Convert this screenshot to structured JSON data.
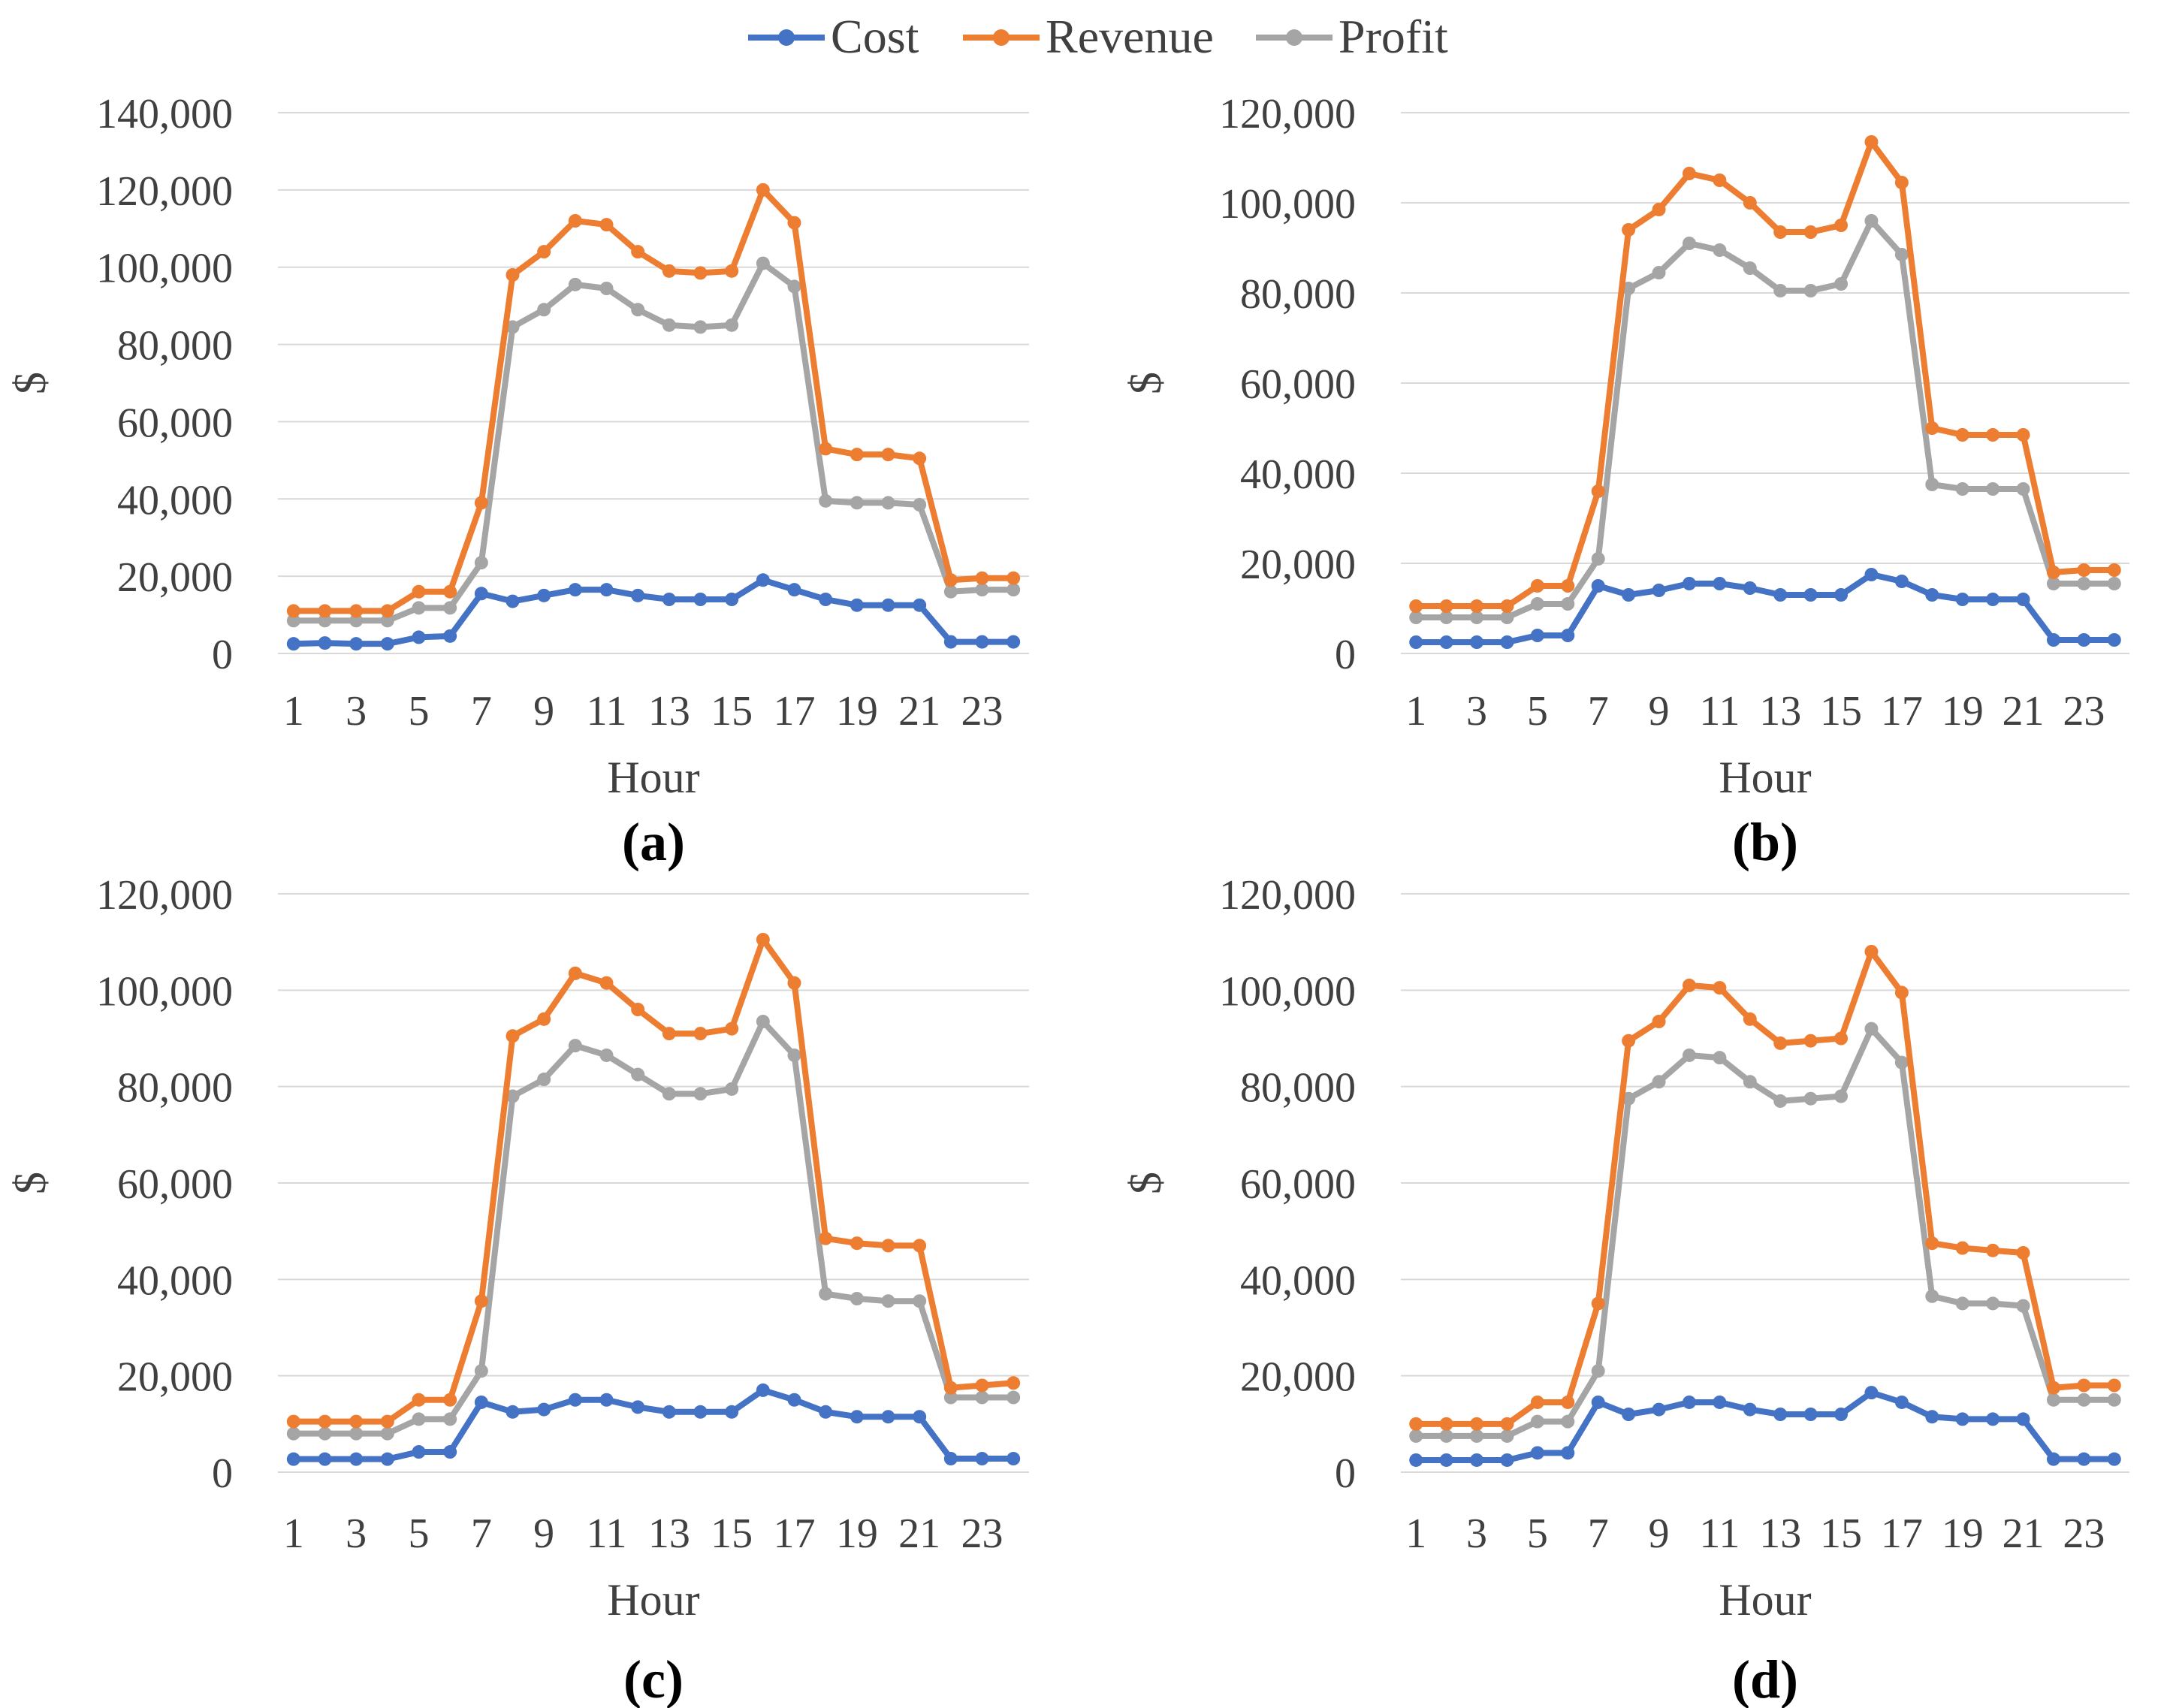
{
  "colors": {
    "cost": "#4472c4",
    "revenue": "#ed7d31",
    "profit": "#a5a5a5"
  },
  "legend": [
    {
      "name": "Cost",
      "color": "#4472c4"
    },
    {
      "name": "Revenue",
      "color": "#ed7d31"
    },
    {
      "name": "Profit",
      "color": "#a5a5a5"
    }
  ],
  "chart_data": [
    {
      "type": "line",
      "panel_label": "(a)",
      "xlabel": "Hour",
      "ylabel": "$",
      "x": [
        1,
        2,
        3,
        4,
        5,
        6,
        7,
        8,
        9,
        10,
        11,
        12,
        13,
        14,
        15,
        16,
        17,
        18,
        19,
        20,
        21,
        22,
        23,
        24
      ],
      "x_tick_labels": [
        "1",
        "3",
        "5",
        "7",
        "9",
        "11",
        "13",
        "15",
        "17",
        "19",
        "21",
        "23"
      ],
      "ylim": [
        0,
        140000
      ],
      "y_ticks": [
        0,
        20000,
        40000,
        60000,
        80000,
        100000,
        120000,
        140000
      ],
      "y_tick_labels": [
        "0",
        "20,000",
        "40,000",
        "60,000",
        "80,000",
        "100,000",
        "120,000",
        "140,000"
      ],
      "series": [
        {
          "name": "Cost",
          "values": [
            2500,
            2700,
            2500,
            2500,
            4200,
            4500,
            15500,
            13500,
            15000,
            16500,
            16500,
            15000,
            14000,
            14000,
            14000,
            19000,
            16500,
            14000,
            12500,
            12500,
            12500,
            3000,
            3000,
            3000
          ]
        },
        {
          "name": "Revenue",
          "values": [
            11000,
            11000,
            11000,
            11000,
            16000,
            16000,
            39000,
            98000,
            104000,
            112000,
            111000,
            104000,
            99000,
            98500,
            99000,
            120000,
            111500,
            53000,
            51500,
            51500,
            50500,
            19000,
            19500,
            19500
          ]
        },
        {
          "name": "Profit",
          "values": [
            8500,
            8500,
            8500,
            8500,
            11800,
            11800,
            23500,
            84500,
            89000,
            95500,
            94500,
            89000,
            85000,
            84500,
            85000,
            101000,
            95000,
            39500,
            39000,
            39000,
            38500,
            16000,
            16500,
            16500
          ]
        }
      ]
    },
    {
      "type": "line",
      "panel_label": "(b)",
      "xlabel": "Hour",
      "ylabel": "$",
      "x": [
        1,
        2,
        3,
        4,
        5,
        6,
        7,
        8,
        9,
        10,
        11,
        12,
        13,
        14,
        15,
        16,
        17,
        18,
        19,
        20,
        21,
        22,
        23,
        24
      ],
      "x_tick_labels": [
        "1",
        "3",
        "5",
        "7",
        "9",
        "11",
        "13",
        "15",
        "17",
        "19",
        "21",
        "23"
      ],
      "ylim": [
        0,
        120000
      ],
      "y_ticks": [
        0,
        20000,
        40000,
        60000,
        80000,
        100000,
        120000
      ],
      "y_tick_labels": [
        "0",
        "20,000",
        "40,000",
        "60,000",
        "80,000",
        "100,000",
        "120,000"
      ],
      "series": [
        {
          "name": "Cost",
          "values": [
            2500,
            2500,
            2500,
            2500,
            4000,
            4000,
            15000,
            13000,
            14000,
            15500,
            15500,
            14500,
            13000,
            13000,
            13000,
            17500,
            16000,
            13000,
            12000,
            12000,
            12000,
            3000,
            3000,
            3000
          ]
        },
        {
          "name": "Revenue",
          "values": [
            10500,
            10500,
            10500,
            10500,
            15000,
            15000,
            36000,
            94000,
            98500,
            106500,
            105000,
            100000,
            93500,
            93500,
            95000,
            113500,
            104500,
            50000,
            48500,
            48500,
            48500,
            18000,
            18500,
            18500
          ]
        },
        {
          "name": "Profit",
          "values": [
            8000,
            8000,
            8000,
            8000,
            11000,
            11000,
            21000,
            81000,
            84500,
            91000,
            89500,
            85500,
            80500,
            80500,
            82000,
            96000,
            88500,
            37500,
            36500,
            36500,
            36500,
            15500,
            15500,
            15500
          ]
        }
      ]
    },
    {
      "type": "line",
      "panel_label": "(c)",
      "xlabel": "Hour",
      "ylabel": "$",
      "x": [
        1,
        2,
        3,
        4,
        5,
        6,
        7,
        8,
        9,
        10,
        11,
        12,
        13,
        14,
        15,
        16,
        17,
        18,
        19,
        20,
        21,
        22,
        23,
        24
      ],
      "x_tick_labels": [
        "1",
        "3",
        "5",
        "7",
        "9",
        "11",
        "13",
        "15",
        "17",
        "19",
        "21",
        "23"
      ],
      "ylim": [
        0,
        120000
      ],
      "y_ticks": [
        0,
        20000,
        40000,
        60000,
        80000,
        100000,
        120000
      ],
      "y_tick_labels": [
        "0",
        "20,000",
        "40,000",
        "60,000",
        "80,000",
        "100,000",
        "120,000"
      ],
      "series": [
        {
          "name": "Cost",
          "values": [
            2700,
            2700,
            2700,
            2700,
            4200,
            4200,
            14500,
            12500,
            13000,
            15000,
            15000,
            13500,
            12500,
            12500,
            12500,
            17000,
            15000,
            12500,
            11500,
            11500,
            11500,
            2800,
            2800,
            2800
          ]
        },
        {
          "name": "Revenue",
          "values": [
            10500,
            10500,
            10500,
            10500,
            15000,
            15000,
            35500,
            90500,
            94000,
            103500,
            101500,
            96000,
            91000,
            91000,
            92000,
            110500,
            101500,
            48500,
            47500,
            47000,
            47000,
            17500,
            18000,
            18500
          ]
        },
        {
          "name": "Profit",
          "values": [
            8000,
            8000,
            8000,
            8000,
            11000,
            11000,
            21000,
            78000,
            81500,
            88500,
            86500,
            82500,
            78500,
            78500,
            79500,
            93500,
            86500,
            37000,
            36000,
            35500,
            35500,
            15500,
            15500,
            15500
          ]
        }
      ]
    },
    {
      "type": "line",
      "panel_label": "(d)",
      "xlabel": "Hour",
      "ylabel": "$",
      "x": [
        1,
        2,
        3,
        4,
        5,
        6,
        7,
        8,
        9,
        10,
        11,
        12,
        13,
        14,
        15,
        16,
        17,
        18,
        19,
        20,
        21,
        22,
        23,
        24
      ],
      "x_tick_labels": [
        "1",
        "3",
        "5",
        "7",
        "9",
        "11",
        "13",
        "15",
        "17",
        "19",
        "21",
        "23"
      ],
      "ylim": [
        0,
        120000
      ],
      "y_ticks": [
        0,
        20000,
        40000,
        60000,
        80000,
        100000,
        120000
      ],
      "y_tick_labels": [
        "0",
        "20,000",
        "40,000",
        "60,000",
        "80,000",
        "100,000",
        "120,000"
      ],
      "series": [
        {
          "name": "Cost",
          "values": [
            2500,
            2500,
            2500,
            2500,
            4000,
            4000,
            14500,
            12000,
            13000,
            14500,
            14500,
            13000,
            12000,
            12000,
            12000,
            16500,
            14500,
            11500,
            11000,
            11000,
            11000,
            2700,
            2700,
            2700
          ]
        },
        {
          "name": "Revenue",
          "values": [
            10000,
            10000,
            10000,
            10000,
            14500,
            14500,
            35000,
            89500,
            93500,
            101000,
            100500,
            94000,
            89000,
            89500,
            90000,
            108000,
            99500,
            47500,
            46500,
            46000,
            45500,
            17500,
            18000,
            18000
          ]
        },
        {
          "name": "Profit",
          "values": [
            7500,
            7500,
            7500,
            7500,
            10500,
            10500,
            21000,
            77500,
            81000,
            86500,
            86000,
            81000,
            77000,
            77500,
            78000,
            92000,
            85000,
            36500,
            35000,
            35000,
            34500,
            15000,
            15000,
            15000
          ]
        }
      ]
    }
  ]
}
